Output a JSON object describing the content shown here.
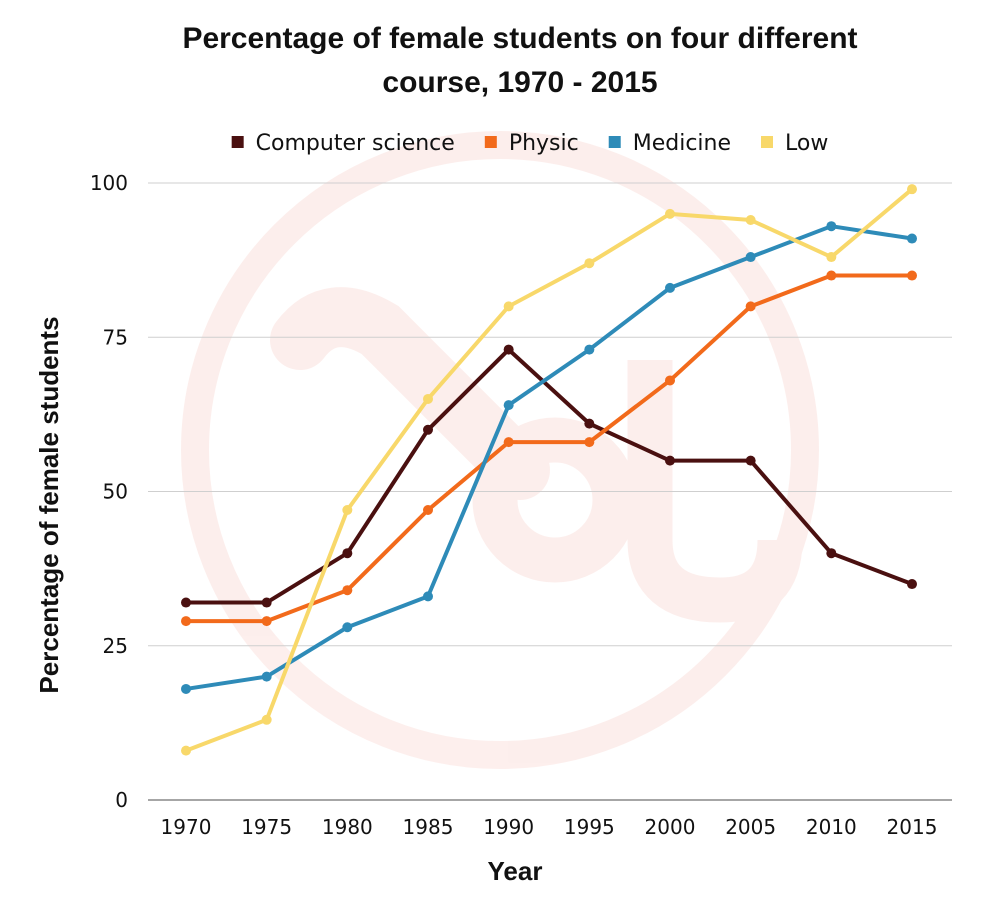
{
  "chart_data": {
    "type": "line",
    "title_lines": [
      "Percentage of female students on four different",
      "course, 1970 - 2015"
    ],
    "xlabel": "Year",
    "ylabel": "Percentage of female students",
    "x": [
      "1970",
      "1975",
      "1980",
      "1985",
      "1990",
      "1995",
      "2000",
      "2005",
      "2010",
      "2015"
    ],
    "ylim": [
      0,
      100
    ],
    "yticks": [
      0,
      25,
      50,
      75,
      100
    ],
    "grid": true,
    "legend_position": "top",
    "series": [
      {
        "name": "Computer science",
        "color": "#4a1010",
        "values": [
          32,
          32,
          40,
          60,
          73,
          61,
          55,
          55,
          40,
          35
        ]
      },
      {
        "name": "Physic",
        "color": "#f26a1b",
        "values": [
          29,
          29,
          34,
          47,
          58,
          58,
          68,
          80,
          85,
          85
        ]
      },
      {
        "name": "Medicine",
        "color": "#2e8bb8",
        "values": [
          18,
          20,
          28,
          33,
          64,
          73,
          83,
          88,
          93,
          91
        ]
      },
      {
        "name": "Low",
        "color": "#f8d86a",
        "values": [
          8,
          13,
          47,
          65,
          80,
          87,
          95,
          94,
          88,
          99
        ]
      }
    ]
  }
}
